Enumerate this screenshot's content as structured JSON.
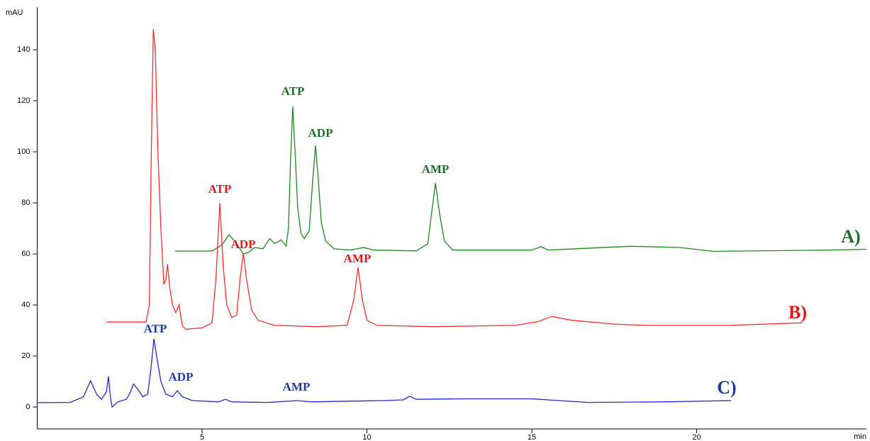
{
  "chart_data": {
    "type": "line",
    "y_label": "mAU",
    "x_label": "min",
    "xlim": [
      0,
      25.15
    ],
    "ylim": [
      -8.6,
      156.7
    ],
    "xticks": [
      5,
      10,
      15,
      20
    ],
    "yticks": [
      0,
      20,
      40,
      60,
      80,
      100,
      120,
      140
    ],
    "series": [
      {
        "name": "A)",
        "color": "#1a8a1a",
        "label_color": "#1e6e2a",
        "labels": [
          "ATP",
          "ADP",
          "AMP"
        ],
        "x": [
          4.18,
          5.3,
          5.6,
          5.82,
          6.05,
          6.25,
          6.4,
          6.6,
          6.85,
          7.05,
          7.2,
          7.4,
          7.55,
          7.62,
          7.68,
          7.75,
          7.82,
          7.9,
          8.0,
          8.1,
          8.25,
          8.35,
          8.44,
          8.52,
          8.62,
          8.75,
          9.0,
          9.5,
          9.9,
          10.2,
          11.5,
          11.85,
          11.95,
          12.08,
          12.2,
          12.35,
          12.6,
          15.0,
          15.28,
          15.5,
          18.0,
          19.5,
          20.5,
          24.0,
          25.15
        ],
        "values": [
          61.1,
          61.1,
          63.5,
          67.5,
          64,
          60,
          60.5,
          62.5,
          62,
          66,
          64,
          65.5,
          63,
          70,
          95,
          117.8,
          100,
          78,
          68,
          66,
          69,
          88,
          102.5,
          90,
          72,
          65,
          62,
          61.5,
          62.5,
          61.5,
          61.2,
          64,
          75,
          87.8,
          76,
          65,
          61.5,
          61.5,
          62.8,
          61.5,
          63,
          62.5,
          61,
          61.5,
          61.8
        ]
      },
      {
        "name": "B)",
        "color": "#ff2a2a",
        "label_color": "#e8141a",
        "labels": [
          "ATP",
          "ADP",
          "AMP"
        ],
        "x": [
          2.1,
          3.3,
          3.4,
          3.46,
          3.52,
          3.58,
          3.66,
          3.75,
          3.84,
          3.9,
          3.95,
          4.02,
          4.1,
          4.2,
          4.3,
          4.4,
          4.5,
          5.0,
          5.3,
          5.42,
          5.54,
          5.64,
          5.75,
          5.9,
          6.05,
          6.15,
          6.25,
          6.35,
          6.5,
          6.7,
          7.2,
          8.5,
          9.4,
          9.6,
          9.73,
          9.86,
          10.0,
          10.3,
          12,
          14.5,
          15.2,
          15.6,
          16.2,
          17.5,
          18.5,
          21,
          23.2
        ],
        "values": [
          33.3,
          33.3,
          40,
          100,
          148,
          140,
          100,
          70,
          48,
          50,
          56,
          47,
          40,
          37,
          40,
          32,
          30.5,
          31,
          33,
          50,
          80,
          55,
          40,
          35,
          36,
          50,
          60.3,
          50,
          38,
          34,
          32,
          31.5,
          32,
          42,
          54.7,
          42,
          34,
          32,
          31.5,
          32,
          33.5,
          35.5,
          34,
          32.5,
          32,
          32,
          33
        ]
      },
      {
        "name": "C)",
        "color": "#2525d5",
        "label_color": "#1f3a9a",
        "labels": [
          "ATP",
          "ADP",
          "AMP"
        ],
        "x": [
          0,
          1.0,
          1.4,
          1.62,
          1.8,
          1.95,
          2.1,
          2.16,
          2.22,
          2.27,
          2.45,
          2.7,
          2.8,
          2.92,
          3.05,
          3.2,
          3.35,
          3.45,
          3.54,
          3.62,
          3.75,
          3.9,
          4.1,
          4.25,
          4.4,
          4.7,
          5.5,
          5.71,
          5.9,
          7.0,
          7.9,
          8.3,
          9.5,
          10.5,
          11.1,
          11.3,
          11.5,
          13,
          15,
          16.7,
          19,
          21.05
        ],
        "values": [
          1.7,
          1.8,
          4,
          10.3,
          5,
          3,
          6,
          12,
          4,
          0,
          2,
          3,
          5,
          9,
          7,
          4,
          5,
          15,
          26.7,
          20,
          10,
          5,
          4,
          6.4,
          4,
          2.5,
          2,
          3,
          2,
          1.8,
          2.5,
          2,
          2.3,
          2.5,
          2.8,
          4.2,
          3,
          3.2,
          3.2,
          1.8,
          2,
          2.5
        ]
      }
    ]
  }
}
